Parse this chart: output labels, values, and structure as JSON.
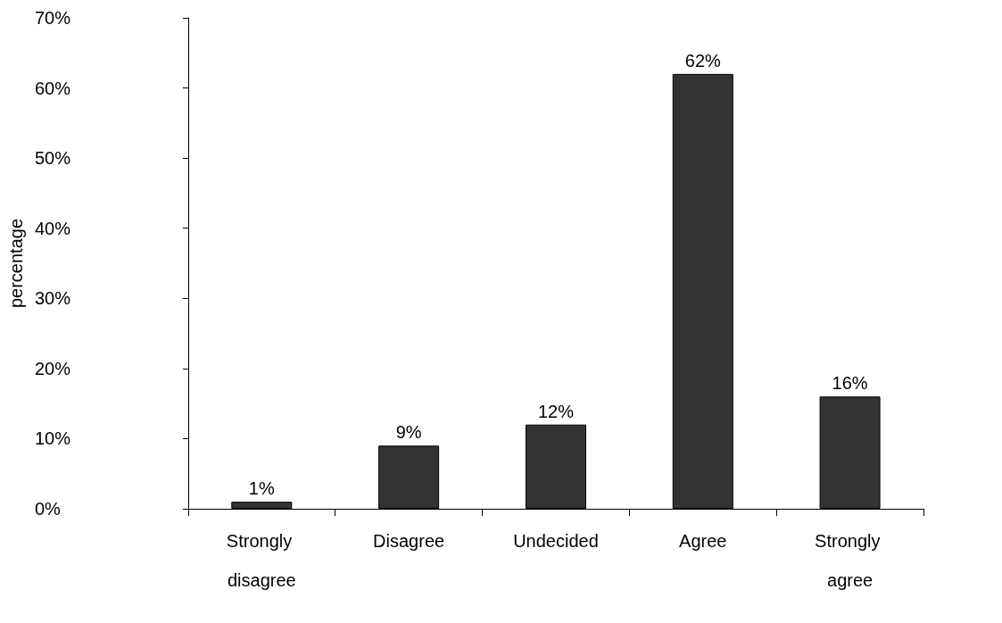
{
  "chart_data": {
    "type": "bar",
    "ylabel": "percentage",
    "categories": [
      "Strongly disagree",
      "Disagree",
      "Undecided",
      "Agree",
      "Strongly agree"
    ],
    "values": [
      1,
      9,
      12,
      62,
      16
    ],
    "value_labels": [
      "1%",
      "9%",
      "12%",
      "62%",
      "16%"
    ],
    "color": "#333333",
    "ylim": [
      0,
      70
    ],
    "yticks": [
      {
        "value": 0,
        "label": "0%"
      },
      {
        "value": 10,
        "label": "10%"
      },
      {
        "value": 20,
        "label": "20%"
      },
      {
        "value": 30,
        "label": "30%"
      },
      {
        "value": 40,
        "label": "40%"
      },
      {
        "value": 50,
        "label": "50%"
      },
      {
        "value": 60,
        "label": "60%"
      },
      {
        "value": 70,
        "label": "70%"
      }
    ],
    "grid": false
  }
}
